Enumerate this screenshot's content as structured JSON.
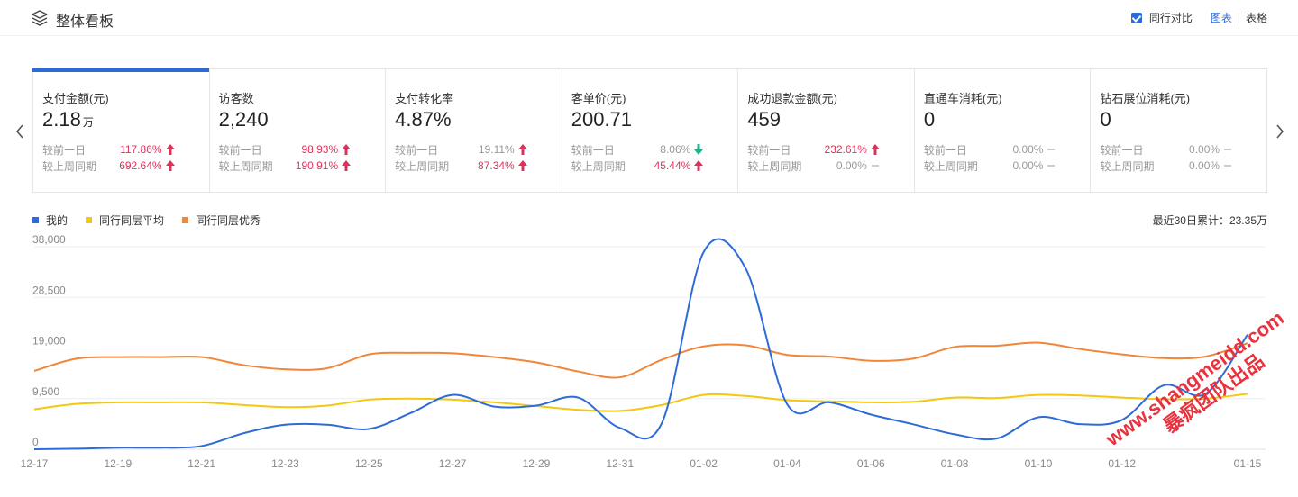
{
  "header": {
    "title": "整体看板",
    "compare_label": "同行对比",
    "view_chart": "图表",
    "view_table": "表格"
  },
  "cards": [
    {
      "name": "支付金额(元)",
      "value": "2.18",
      "unit": "万",
      "d1_label": "较前一日",
      "d1": "117.86%",
      "d1_trend": "up",
      "w1_label": "较上周同期",
      "w1": "692.64%",
      "w1_trend": "up"
    },
    {
      "name": "访客数",
      "value": "2,240",
      "unit": "",
      "d1_label": "较前一日",
      "d1": "98.93%",
      "d1_trend": "up",
      "w1_label": "较上周同期",
      "w1": "190.91%",
      "w1_trend": "up"
    },
    {
      "name": "支付转化率",
      "value": "4.87%",
      "unit": "",
      "d1_label": "较前一日",
      "d1": "19.11%",
      "d1_trend": "up-gray",
      "w1_label": "较上周同期",
      "w1": "87.34%",
      "w1_trend": "up"
    },
    {
      "name": "客单价(元)",
      "value": "200.71",
      "unit": "",
      "d1_label": "较前一日",
      "d1": "8.06%",
      "d1_trend": "down",
      "w1_label": "较上周同期",
      "w1": "45.44%",
      "w1_trend": "up"
    },
    {
      "name": "成功退款金额(元)",
      "value": "459",
      "unit": "",
      "d1_label": "较前一日",
      "d1": "232.61%",
      "d1_trend": "up",
      "w1_label": "较上周同期",
      "w1": "0.00%",
      "w1_trend": "flat"
    },
    {
      "name": "直通车消耗(元)",
      "value": "0",
      "unit": "",
      "d1_label": "较前一日",
      "d1": "0.00%",
      "d1_trend": "flat",
      "w1_label": "较上周同期",
      "w1": "0.00%",
      "w1_trend": "flat"
    },
    {
      "name": "钻石展位消耗(元)",
      "value": "0",
      "unit": "",
      "d1_label": "较前一日",
      "d1": "0.00%",
      "d1_trend": "flat",
      "w1_label": "较上周同期",
      "w1": "0.00%",
      "w1_trend": "flat"
    }
  ],
  "colors": {
    "accent": "#2e6bd6",
    "up": "#e0305a",
    "down": "#1db38a",
    "peer_avg": "#f2c811",
    "peer_top": "#f0863a"
  },
  "legend": [
    {
      "name": "我的",
      "color": "#2e6bd6"
    },
    {
      "name": "同行同层平均",
      "color": "#f2c811"
    },
    {
      "name": "同行同层优秀",
      "color": "#f0863a"
    }
  ],
  "summary": "最近30日累计：23.35万",
  "watermark": {
    "line1": "www.shangmeidd.com",
    "line2": "暴疯团队出品"
  },
  "chart_data": {
    "type": "line",
    "y_ticks": [
      "38,000",
      "28,500",
      "19,000",
      "9,500",
      "0"
    ],
    "ylim": [
      0,
      38000
    ],
    "x_labels": [
      "12-17",
      "12-19",
      "12-21",
      "12-23",
      "12-25",
      "12-27",
      "12-29",
      "12-31",
      "01-02",
      "01-04",
      "01-06",
      "01-08",
      "01-10",
      "01-12",
      "01-15"
    ],
    "x": [
      "12-17",
      "12-18",
      "12-19",
      "12-20",
      "12-21",
      "12-22",
      "12-23",
      "12-24",
      "12-25",
      "12-26",
      "12-27",
      "12-28",
      "12-29",
      "12-30",
      "12-31",
      "01-01",
      "01-02",
      "01-03",
      "01-04",
      "01-05",
      "01-06",
      "01-07",
      "01-08",
      "01-09",
      "01-10",
      "01-11",
      "01-12",
      "01-13",
      "01-14",
      "01-15"
    ],
    "series": [
      {
        "name": "我的",
        "color": "#2e6bd6",
        "values": [
          0,
          100,
          300,
          300,
          600,
          3000,
          4600,
          4600,
          3800,
          6800,
          10200,
          8000,
          8200,
          9700,
          4000,
          4900,
          37000,
          34000,
          8400,
          8800,
          6500,
          4700,
          2800,
          2000,
          6000,
          4700,
          5500,
          12000,
          10400,
          21500
        ]
      },
      {
        "name": "同行同层平均",
        "color": "#f2c811",
        "values": [
          7500,
          8500,
          8800,
          8800,
          8800,
          8300,
          7900,
          8200,
          9300,
          9500,
          9300,
          8800,
          8100,
          7400,
          7200,
          8300,
          10200,
          10000,
          9200,
          9000,
          8800,
          8900,
          9700,
          9600,
          10200,
          10100,
          9700,
          9400,
          9500,
          10400
        ]
      },
      {
        "name": "同行同层优秀",
        "color": "#f0863a",
        "values": [
          14700,
          17000,
          17300,
          17300,
          17300,
          15800,
          15000,
          15200,
          17800,
          18100,
          18000,
          17300,
          16300,
          14600,
          13500,
          16800,
          19300,
          19500,
          17700,
          17400,
          16600,
          17000,
          19200,
          19400,
          20000,
          18800,
          17800,
          17100,
          17400,
          19900
        ]
      }
    ]
  }
}
